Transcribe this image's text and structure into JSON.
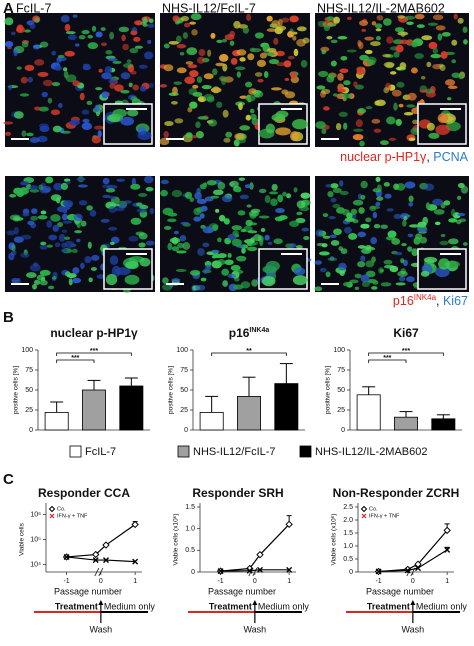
{
  "panel_a": {
    "label": "A",
    "columns": [
      "FcIL-7",
      "NHS-IL12/FcIL-7",
      "NHS-IL12/IL-2MAB602"
    ],
    "row_legends": [
      [
        {
          "text": "nuclear p-HP1γ",
          "color": "#e3241d"
        },
        {
          "text": ", ",
          "color": "#222222"
        },
        {
          "text": "PCNA",
          "color": "#2b7ccf"
        }
      ],
      [
        {
          "text": "p16",
          "color": "#e3241d"
        },
        {
          "text": "INK4a",
          "color": "#e3241d",
          "superscript": true
        },
        {
          "text": ", ",
          "color": "#222222"
        },
        {
          "text": "Ki67",
          "color": "#2b7ccf"
        }
      ]
    ]
  },
  "panel_b": {
    "label": "B",
    "legend": [
      {
        "name": "FcIL-7",
        "color": "#ffffff"
      },
      {
        "name": "NHS-IL12/FcIL-7",
        "color": "#a0a0a0"
      },
      {
        "name": "NHS-IL12/IL-2MAB602",
        "color": "#000000"
      }
    ]
  },
  "panel_c": {
    "label": "C"
  },
  "chart_data": [
    {
      "type": "bar",
      "title": "nuclear p-HP1γ",
      "ylabel": "positive cells [%]",
      "categories": [
        null,
        null,
        null
      ],
      "values": [
        22,
        50,
        55
      ],
      "errors": [
        13,
        12,
        10
      ],
      "colors": [
        "#ffffff",
        "#a0a0a0",
        "#000000"
      ],
      "ylim": [
        0,
        100
      ],
      "yticks": [
        0,
        25,
        50,
        75,
        100
      ],
      "annotations": [
        {
          "text": "***",
          "from": 0,
          "to": 1
        },
        {
          "text": "***",
          "from": 0,
          "to": 2
        }
      ]
    },
    {
      "type": "bar",
      "title": "p16",
      "title_superscript": "INK4a",
      "ylabel": "positive cells [%]",
      "categories": [
        null,
        null,
        null
      ],
      "values": [
        22,
        42,
        58
      ],
      "errors": [
        20,
        24,
        25
      ],
      "colors": [
        "#ffffff",
        "#a0a0a0",
        "#000000"
      ],
      "ylim": [
        0,
        100
      ],
      "yticks": [
        0,
        25,
        50,
        75,
        100
      ],
      "annotations": [
        {
          "text": "**",
          "from": 0,
          "to": 2
        }
      ]
    },
    {
      "type": "bar",
      "title": "Ki67",
      "ylabel": "positive cells [%]",
      "categories": [
        null,
        null,
        null
      ],
      "values": [
        44,
        16,
        14
      ],
      "errors": [
        10,
        7,
        5
      ],
      "colors": [
        "#ffffff",
        "#a0a0a0",
        "#000000"
      ],
      "ylim": [
        0,
        100
      ],
      "yticks": [
        0,
        25,
        50,
        75,
        100
      ],
      "annotations": [
        {
          "text": "***",
          "from": 0,
          "to": 1
        },
        {
          "text": "***",
          "from": 0,
          "to": 2
        }
      ]
    },
    {
      "type": "line",
      "title": "Responder CCA",
      "ylabel": "Viable cells",
      "xlabel": "Passage number",
      "log_y": true,
      "x_axis_break": true,
      "x": [
        -1,
        -0.15,
        0.15,
        1
      ],
      "series": [
        {
          "name": "Co.",
          "color": "#000000",
          "marker": "diamond",
          "values": [
            20000,
            25000,
            60000,
            400000
          ],
          "errors": [
            null,
            null,
            null,
            120000
          ]
        },
        {
          "name": "IFN-γ + TNF",
          "color": "#000000",
          "label_color": "#e3241d",
          "marker": "cross",
          "values": [
            20000,
            15000,
            15000,
            13000
          ],
          "errors": [
            null,
            null,
            null,
            null
          ]
        }
      ],
      "xlim": [
        -1.6,
        1.2
      ],
      "xticks": [
        -1,
        0,
        1
      ],
      "ylim": [
        5000,
        2000000
      ],
      "yticks": [
        {
          "value": 10000,
          "label": "10⁴"
        },
        {
          "value": 100000,
          "label": "10⁵"
        },
        {
          "value": 1000000,
          "label": "10⁶"
        }
      ],
      "treatment": "Treatment",
      "medium": "Medium only",
      "wash": "Wash"
    },
    {
      "type": "line",
      "title": "Responder SRH",
      "ylabel": "Viable cells (x10⁶)",
      "xlabel": "Passage number",
      "x_axis_break": true,
      "x": [
        -1,
        -0.15,
        0.15,
        1
      ],
      "series": [
        {
          "color": "#000000",
          "marker": "diamond",
          "values": [
            0.02,
            0.08,
            0.4,
            1.1
          ],
          "errors": [
            null,
            null,
            null,
            0.2
          ]
        },
        {
          "color": "#000000",
          "marker": "cross",
          "values": [
            0.02,
            0.03,
            0.05,
            0.05
          ],
          "errors": [
            null,
            null,
            null,
            null
          ]
        }
      ],
      "xlim": [
        -1.6,
        1.2
      ],
      "xticks": [
        -1,
        0,
        1
      ],
      "ylim": [
        0,
        1.5
      ],
      "yticks": [
        0,
        0.5,
        {
          "value": 1,
          "label": "1.0"
        },
        1.5
      ],
      "treatment": "Treatment",
      "medium": "Medium only",
      "wash": "Wash"
    },
    {
      "type": "line",
      "title": "Non-Responder ZCRH",
      "ylabel": "Viable cells (x10⁶)",
      "xlabel": "Passage number",
      "x_axis_break": true,
      "x": [
        -1,
        -0.15,
        0.15,
        1
      ],
      "series": [
        {
          "name": "Co.",
          "color": "#000000",
          "marker": "diamond",
          "values": [
            0.02,
            0.1,
            0.3,
            1.6
          ],
          "errors": [
            null,
            null,
            null,
            0.25
          ]
        },
        {
          "name": "IFN-γ + TNF",
          "color": "#000000",
          "label_color": "#e3241d",
          "marker": "cross",
          "values": [
            0.02,
            0.06,
            0.15,
            0.85
          ],
          "errors": [
            null,
            null,
            null,
            0.1
          ]
        }
      ],
      "xlim": [
        -1.6,
        1.2
      ],
      "xticks": [
        -1,
        0,
        1
      ],
      "ylim": [
        0,
        2.5
      ],
      "yticks": [
        0,
        {
          "value": 0.5,
          "label": "0.5"
        },
        {
          "value": 1,
          "label": "1.0"
        },
        {
          "value": 1.5,
          "label": "1.5"
        },
        {
          "value": 2,
          "label": "2.0"
        },
        {
          "value": 2.5,
          "label": "2.5"
        }
      ],
      "treatment": "Treatment",
      "medium": "Medium only",
      "wash": "Wash"
    }
  ]
}
